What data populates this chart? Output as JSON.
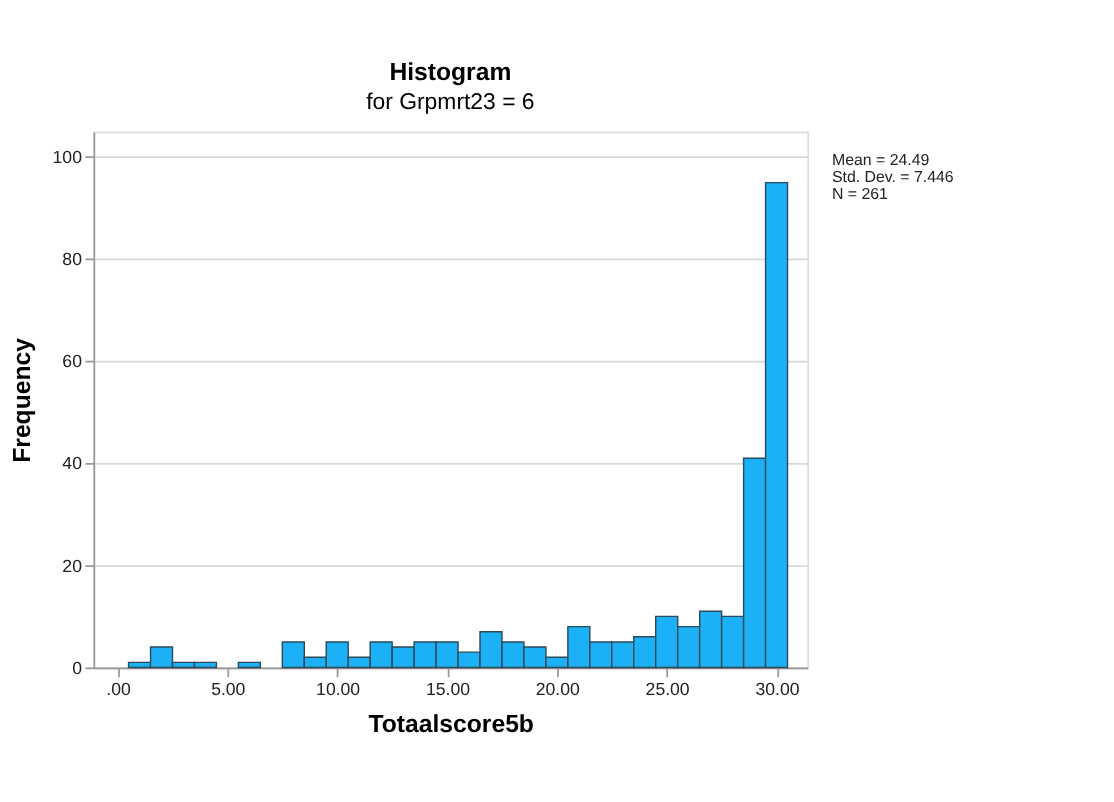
{
  "chart_data": {
    "type": "histogram",
    "title": "Histogram",
    "subtitle": "for Grpmrt23 = 6",
    "xlabel": "Totaalscore5b",
    "ylabel": "Frequency",
    "bins": [
      0.5,
      1.5,
      2.5,
      3.5,
      4.5,
      5.5,
      6.5,
      7.5,
      8.5,
      9.5,
      10.5,
      11.5,
      12.5,
      13.5,
      14.5,
      15.5,
      16.5,
      17.5,
      18.5,
      19.5,
      20.5,
      21.5,
      22.5,
      23.5,
      24.5,
      25.5,
      26.5,
      27.5,
      28.5,
      29.5,
      30.5
    ],
    "values": [
      1,
      4,
      1,
      1,
      0,
      1,
      0,
      5,
      2,
      5,
      2,
      5,
      4,
      5,
      5,
      3,
      7,
      5,
      4,
      2,
      8,
      5,
      5,
      6,
      10,
      8,
      11,
      10,
      41,
      95
    ],
    "color": "#1cb0f6",
    "xlim": [
      -1.1,
      31.4
    ],
    "ylim": [
      0,
      105
    ],
    "xticks": [
      {
        "value": 0,
        "label": ".00"
      },
      {
        "value": 5,
        "label": "5.00"
      },
      {
        "value": 10,
        "label": "10.00"
      },
      {
        "value": 15,
        "label": "15.00"
      },
      {
        "value": 20,
        "label": "20.00"
      },
      {
        "value": 25,
        "label": "25.00"
      },
      {
        "value": 30,
        "label": "30.00"
      }
    ],
    "yticks": [
      0,
      20,
      40,
      60,
      80,
      100
    ],
    "grid": "y",
    "annotations": [
      "Mean = 24.49",
      "Std. Dev. = 7.446",
      "N = 261"
    ]
  }
}
